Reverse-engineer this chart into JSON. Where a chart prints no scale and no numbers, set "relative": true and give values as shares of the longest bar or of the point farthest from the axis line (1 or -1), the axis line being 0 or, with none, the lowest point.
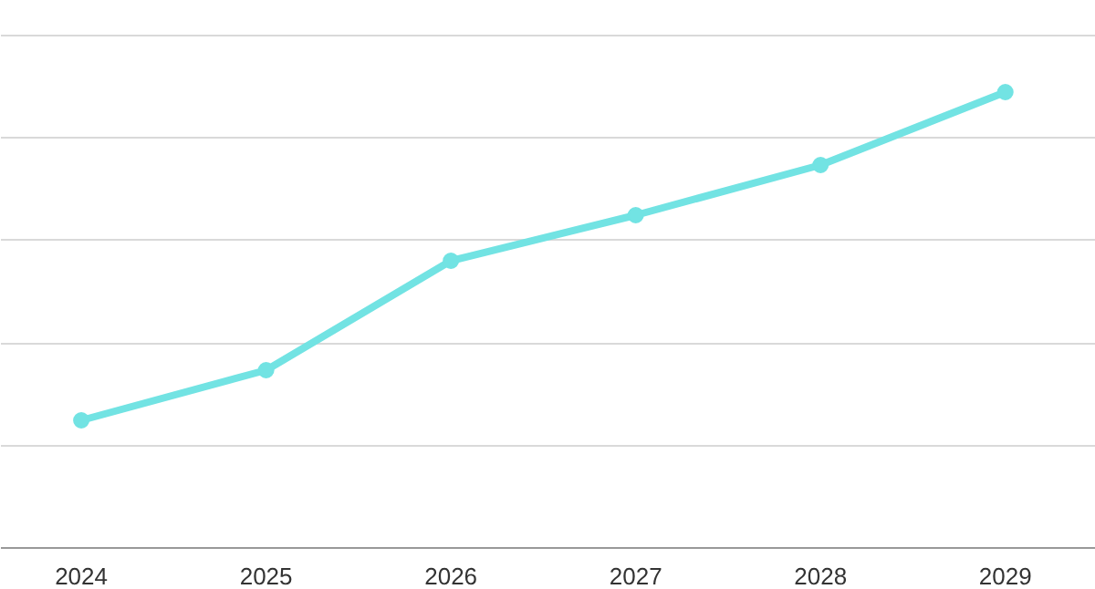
{
  "chart_data": {
    "type": "line",
    "relative": true,
    "categories": [
      "2024",
      "2025",
      "2026",
      "2027",
      "2028",
      "2029"
    ],
    "series": [
      {
        "color": "#72e3e3",
        "values": [
          0.28,
          0.39,
          0.63,
          0.73,
          0.84,
          1
        ]
      }
    ],
    "grid": "y",
    "marker": "circle",
    "line_style": "solid"
  }
}
